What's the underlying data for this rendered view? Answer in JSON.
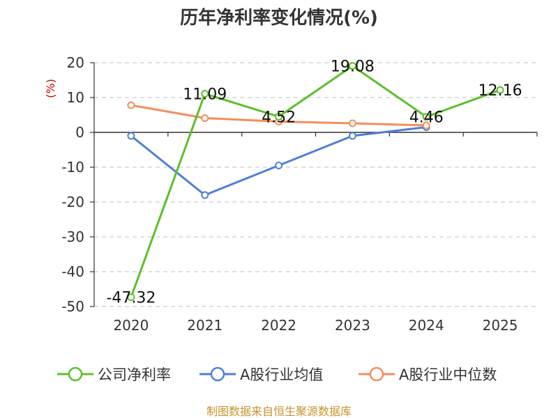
{
  "chart_data": {
    "type": "line",
    "title": "历年净利率变化情况(%)",
    "unit_label": "(%)",
    "x": [
      "2020",
      "2021",
      "2022",
      "2023",
      "2024",
      "2025"
    ],
    "ylim": [
      -50,
      20
    ],
    "yticks": [
      20,
      10,
      0,
      -10,
      -20,
      -30,
      -40,
      -50
    ],
    "grid": true,
    "legend_position": "bottom",
    "series": [
      {
        "name": "公司净利率",
        "color": "#5cbf2a",
        "values": [
          -47.32,
          11.09,
          4.52,
          19.08,
          4.46,
          12.16
        ],
        "labels": [
          "-47.32",
          "11.09",
          "4.52",
          "19.08",
          "4.46",
          "12.16"
        ]
      },
      {
        "name": "A股行业均值",
        "color": "#4e7fd6",
        "values": [
          -1.0,
          -18.0,
          -9.5,
          -1.0,
          1.5,
          null
        ]
      },
      {
        "name": "A股行业中位数",
        "color": "#f58d5b",
        "values": [
          7.8,
          4.1,
          3.1,
          2.6,
          2.0,
          null
        ]
      }
    ],
    "source": "制图数据来自恒生聚源数据库"
  }
}
